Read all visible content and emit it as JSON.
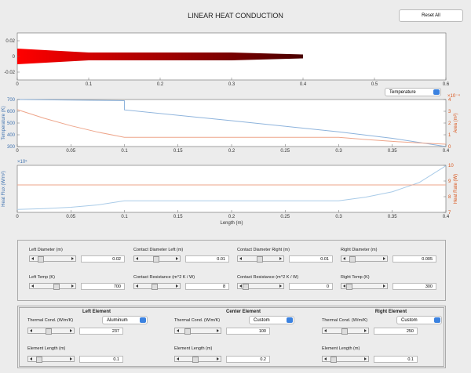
{
  "header": {
    "title": "LINEAR HEAT CONDUCTION",
    "reset_button": "Reset All",
    "plot_selector": "Temperature"
  },
  "chart_data": [
    {
      "type": "profile",
      "x": [
        0,
        0.1,
        0.3,
        0.4
      ],
      "values": [
        0.01,
        0.005,
        0.005,
        0.0025
      ],
      "xlim": [
        0,
        0.6
      ],
      "xticks": [
        0,
        0.1,
        0.2,
        0.3,
        0.4,
        0.5,
        0.6
      ],
      "ylim": [
        -0.03,
        0.03
      ],
      "yticks": [
        -0.02,
        0,
        0.02
      ],
      "colors": [
        "#ff0000",
        "#4a0000"
      ]
    },
    {
      "type": "line",
      "xlim": [
        0,
        0.4
      ],
      "xticks": [
        0,
        0.05,
        0.1,
        0.15,
        0.2,
        0.25,
        0.3,
        0.35,
        0.4
      ],
      "ylabel": "Temperature (K)",
      "ylim": [
        300,
        700
      ],
      "yticks": [
        300,
        400,
        500,
        600,
        700
      ],
      "y2label": "Area (m²)",
      "y2_multiplier": "×10⁻⁴",
      "y2lim": [
        0,
        4
      ],
      "y2ticks": [
        0,
        1,
        2,
        3,
        4
      ],
      "series": [
        {
          "color": "#8db3dc",
          "x": [
            0,
            0.1,
            0.1,
            0.2,
            0.3,
            0.35,
            0.4
          ],
          "values": [
            700,
            690,
            612,
            520,
            425,
            370,
            300
          ]
        },
        {
          "color": "#eea58a",
          "axis": "y2",
          "x": [
            0,
            0.025,
            0.05,
            0.075,
            0.1,
            0.3,
            0.325,
            0.35,
            0.375,
            0.4
          ],
          "values": [
            3.14,
            2.41,
            1.77,
            1.23,
            0.785,
            0.785,
            0.6,
            0.44,
            0.307,
            0.196
          ]
        }
      ]
    },
    {
      "type": "line",
      "xlim": [
        0,
        0.4
      ],
      "xticks": [
        0,
        0.05,
        0.1,
        0.15,
        0.2,
        0.25,
        0.3,
        0.35,
        0.4
      ],
      "xlabel": "Length (m)",
      "ylabel": "Heat Flux (W/m²)",
      "y_multiplier": "×10⁵",
      "ylim": [
        0,
        4.5
      ],
      "y2label": "Heat Rate (W)",
      "y2lim": [
        7,
        10
      ],
      "y2ticks": [
        7,
        8,
        9,
        10
      ],
      "series": [
        {
          "color": "#a9cbe8",
          "x": [
            0,
            0.025,
            0.05,
            0.075,
            0.1,
            0.3,
            0.325,
            0.35,
            0.375,
            0.4
          ],
          "values": [
            0.28,
            0.36,
            0.49,
            0.71,
            1.11,
            1.11,
            1.45,
            1.97,
            2.85,
            4.46
          ]
        },
        {
          "color": "#eea58a",
          "axis": "y2",
          "x": [
            0,
            0.4
          ],
          "values": [
            8.75,
            8.75
          ]
        }
      ]
    }
  ],
  "parameters": [
    {
      "label": "Left Diameter (m)",
      "value": 0.02
    },
    {
      "label": "Contact Diameter Left (m)",
      "value": 0.01
    },
    {
      "label": "Contact Diameter Right (m)",
      "value": 0.01
    },
    {
      "label": "Right Diameter (m)",
      "value": 0.005
    },
    {
      "label": "Left Temp (K)",
      "value": 700
    },
    {
      "label": "Contact Resistance (m^2 K / W)",
      "value": 8
    },
    {
      "label": "Contact Resistance (m^2 K / W)",
      "value": 0
    },
    {
      "label": "Right Temp (K)",
      "value": 300
    }
  ],
  "elements": [
    {
      "title": "Left Element",
      "conductivity_label": "Thermal Cond. (W/m/K)",
      "material": "Aluminum",
      "conductivity": 237,
      "length_label": "Element Length (m)",
      "length": 0.1
    },
    {
      "title": "Center Element",
      "conductivity_label": "Thermal Cond. (W/m/K)",
      "material": "Custom",
      "conductivity": 100,
      "length_label": "Element Length (m)",
      "length": 0.2
    },
    {
      "title": "Right Element",
      "conductivity_label": "Thermal Cond. (W/m/K)",
      "material": "Custom",
      "conductivity": 250,
      "length_label": "Element Length (m)",
      "length": 0.1
    }
  ]
}
